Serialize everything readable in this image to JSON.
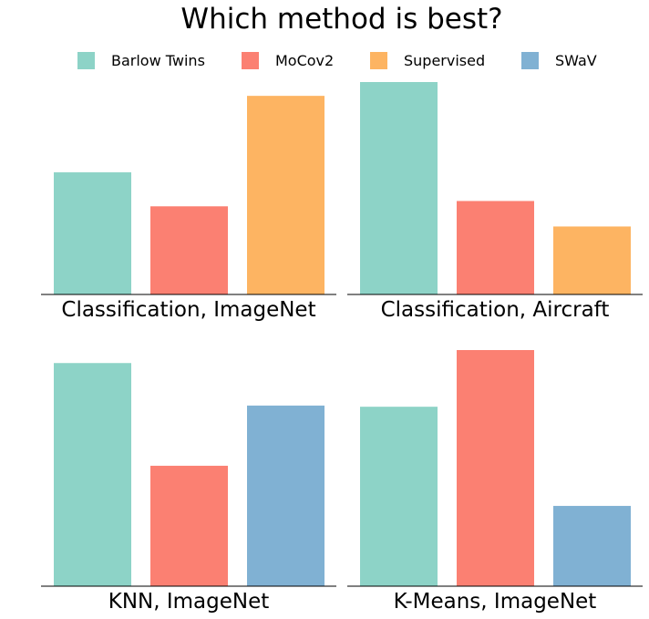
{
  "chart_data": {
    "title": "Which method is best?",
    "legend": {
      "placement": "top",
      "entries": [
        {
          "name": "Barlow Twins",
          "color": "#8dd3c7"
        },
        {
          "name": "MoCov2",
          "color": "#fb8072"
        },
        {
          "name": "Supervised",
          "color": "#fdb462"
        },
        {
          "name": "SWaV",
          "color": "#80b1d3"
        }
      ]
    },
    "subplots": [
      {
        "type": "bar",
        "title": "Classification, ImageNet",
        "categories": [
          "Barlow Twins",
          "MoCov2",
          "Supervised"
        ],
        "values": [
          0.575,
          0.415,
          0.935
        ],
        "ylim": [
          0,
          1
        ],
        "y_ticks_shown": false
      },
      {
        "type": "bar",
        "title": "Classification, Aircraft",
        "categories": [
          "Barlow Twins",
          "MoCov2",
          "Supervised"
        ],
        "values": [
          1.0,
          0.44,
          0.32
        ],
        "ylim": [
          0,
          1
        ],
        "y_ticks_shown": false
      },
      {
        "type": "bar",
        "title": "KNN, ImageNet",
        "categories": [
          "Barlow Twins",
          "MoCov2",
          "SWaV"
        ],
        "values": [
          0.945,
          0.51,
          0.765
        ],
        "ylim": [
          0,
          1
        ],
        "y_ticks_shown": false
      },
      {
        "type": "bar",
        "title": "K-Means, ImageNet",
        "categories": [
          "Barlow Twins",
          "MoCov2",
          "SWaV"
        ],
        "values": [
          0.76,
          1.0,
          0.34
        ],
        "ylim": [
          0,
          1
        ],
        "y_ticks_shown": false
      }
    ]
  }
}
